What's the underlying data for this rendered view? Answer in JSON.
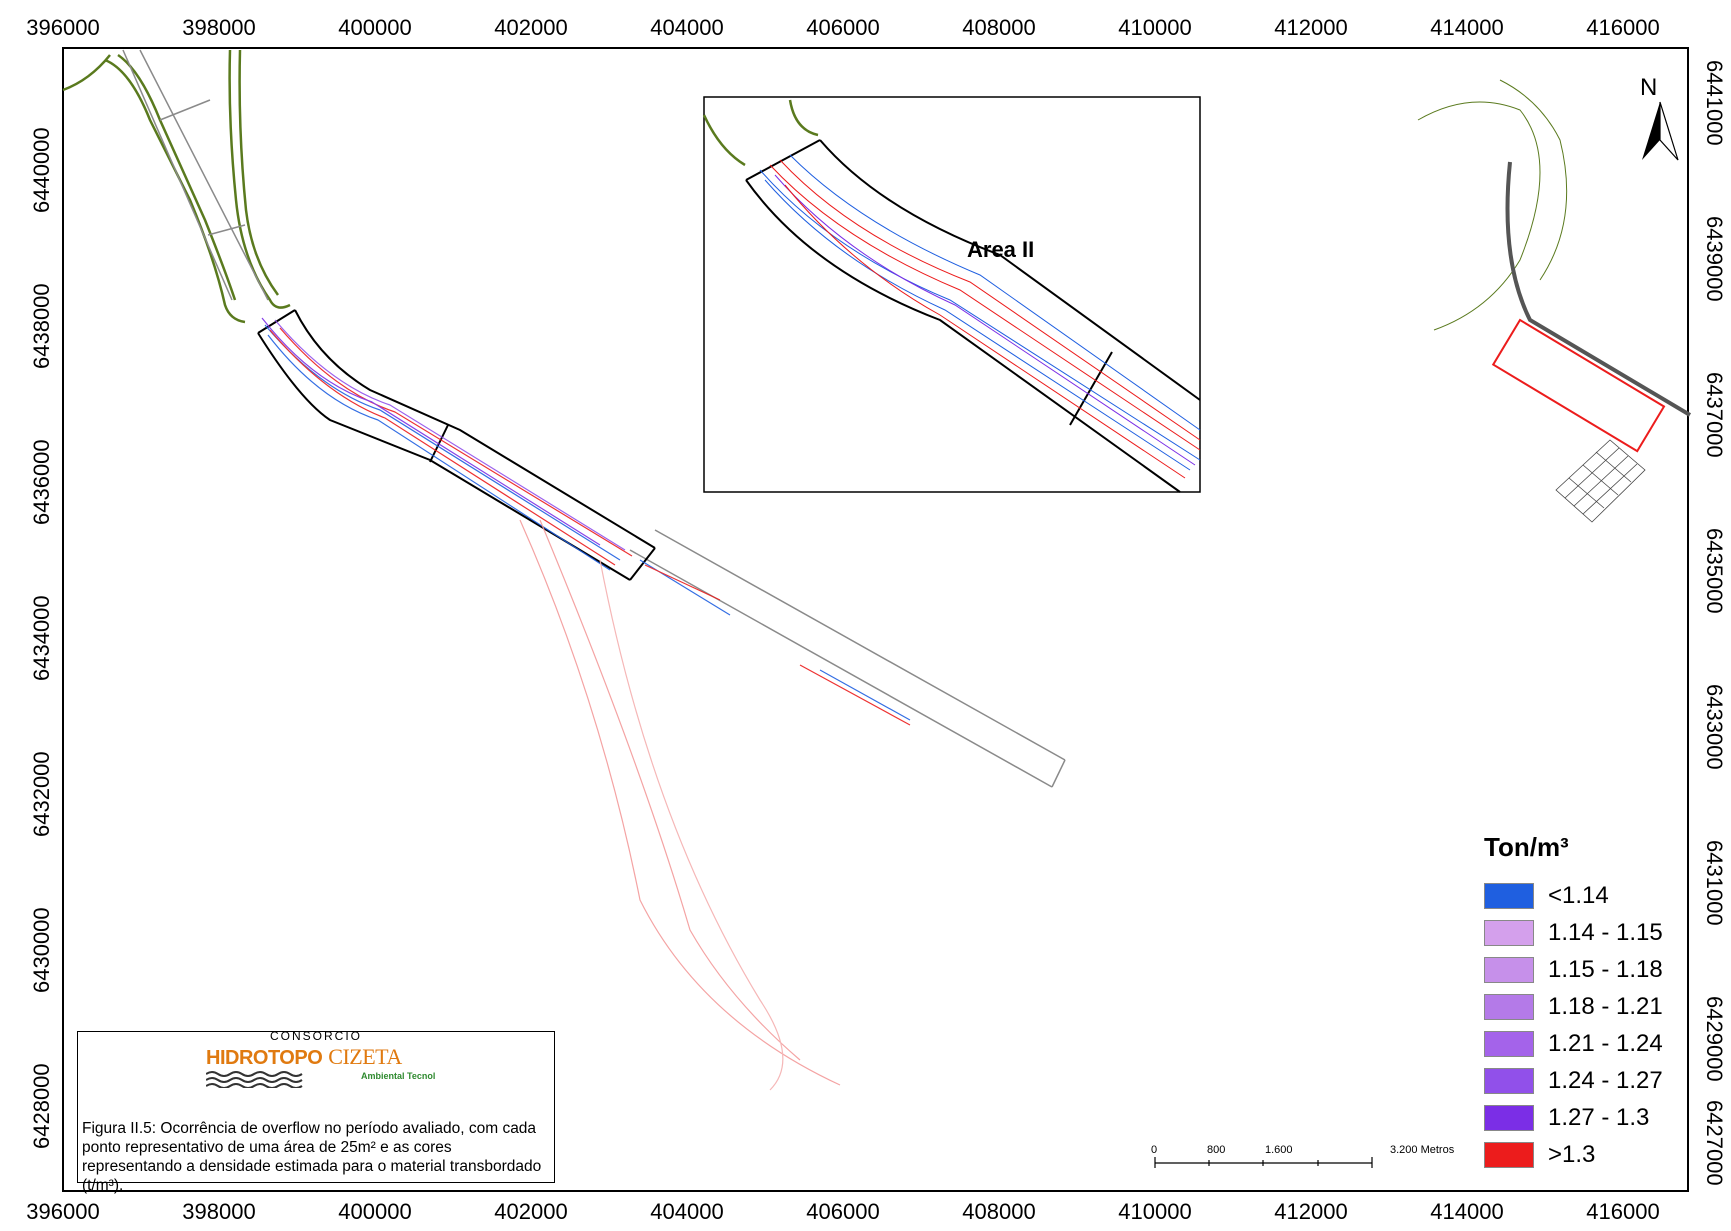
{
  "map": {
    "x_ticks": [
      "396000",
      "398000",
      "400000",
      "402000",
      "404000",
      "406000",
      "408000",
      "410000",
      "412000",
      "414000",
      "416000"
    ],
    "y_ticks": [
      "6441000",
      "6440000",
      "6439000",
      "6438000",
      "6437000",
      "6436000",
      "6435000",
      "6434000",
      "6433000",
      "6432000",
      "6431000",
      "6430000",
      "6429000",
      "6428000",
      "6427000"
    ],
    "inset_label": "Area II",
    "north_label": "N"
  },
  "legend": {
    "title": "Ton/m³",
    "items": [
      {
        "label": "<1.14",
        "color": "#1f5fe0"
      },
      {
        "label": "1.14 - 1.15",
        "color": "#d4a0ec"
      },
      {
        "label": "1.15 - 1.18",
        "color": "#c690ea"
      },
      {
        "label": "1.18 - 1.21",
        "color": "#b47ae8"
      },
      {
        "label": "1.21 - 1.24",
        "color": "#a463ea"
      },
      {
        "label": "1.24 - 1.27",
        "color": "#9150ea"
      },
      {
        "label": "1.27 - 1.3",
        "color": "#7b2ee6"
      },
      {
        "label": ">1.3",
        "color": "#ec1c1c"
      }
    ]
  },
  "scale_bar": {
    "labels": [
      "0",
      "800",
      "1.600",
      "3.200 Metros"
    ]
  },
  "caption": {
    "logo_header": "CONSORCIO",
    "logo_name_a": "HIDROTOPO",
    "logo_name_b": "CIZETA",
    "logo_sub": "Ambiental Tecnol",
    "text": "Figura II.5: Ocorrência de overflow no período avaliado, com cada ponto representativo de uma área de 25m² e as cores representando a densidade estimada para o material transbordado (t/m³)."
  }
}
